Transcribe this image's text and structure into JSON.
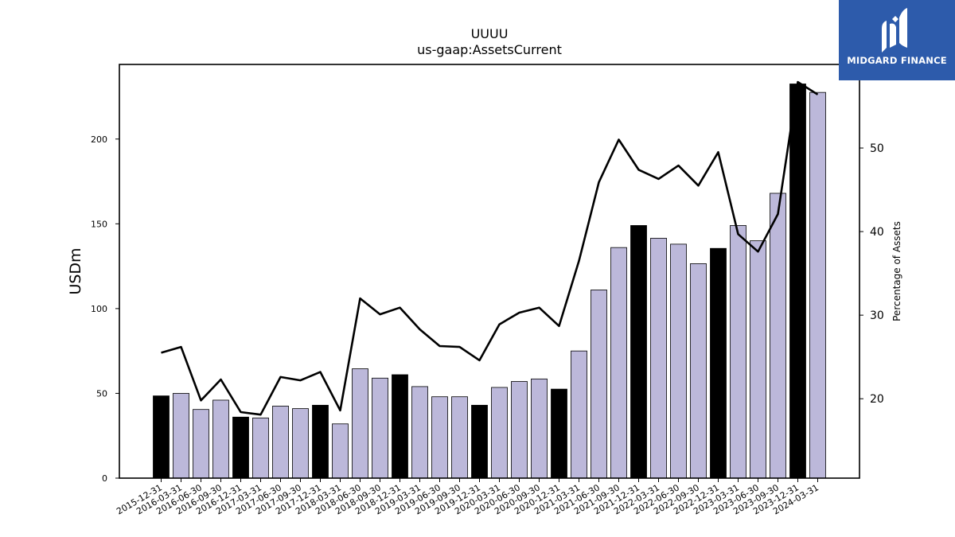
{
  "chart_data": {
    "type": "bar",
    "title": "UUUU",
    "subtitle": "us-gaap:AssetsCurrent",
    "ylabel": "USDm",
    "y2label": "Percentage of Assets",
    "ylim": [
      0,
      244
    ],
    "y2lim": [
      10.5,
      60.0
    ],
    "yticks": [
      0,
      50,
      100,
      150,
      200
    ],
    "y2ticks": [
      20,
      30,
      40,
      50
    ],
    "categories": [
      "2015-12-31",
      "2016-03-31",
      "2016-06-30",
      "2016-09-30",
      "2016-12-31",
      "2017-03-31",
      "2017-06-30",
      "2017-09-30",
      "2017-12-31",
      "2018-03-31",
      "2018-06-30",
      "2018-09-30",
      "2018-12-31",
      "2019-03-31",
      "2019-06-30",
      "2019-09-30",
      "2019-12-31",
      "2020-03-31",
      "2020-06-30",
      "2020-09-30",
      "2020-12-31",
      "2021-03-31",
      "2021-06-30",
      "2021-09-30",
      "2021-12-31",
      "2022-03-31",
      "2022-06-30",
      "2022-09-30",
      "2022-12-31",
      "2023-03-31",
      "2023-06-30",
      "2023-09-30",
      "2023-12-31",
      "2024-03-31"
    ],
    "series": [
      {
        "kind": "bar",
        "values": [
          48.5,
          50.0,
          40.5,
          46.0,
          36.0,
          35.5,
          42.5,
          41.0,
          43.0,
          32.0,
          64.5,
          59.0,
          61.0,
          54.0,
          48.0,
          48.0,
          43.0,
          53.5,
          57.0,
          58.5,
          52.5,
          75.0,
          111.0,
          136.0,
          149.0,
          141.5,
          138.0,
          126.5,
          135.5,
          149.0,
          140.0,
          168.0,
          232.5,
          227.5
        ],
        "year_end_color": "#000000",
        "quarter_color": "#bcb8da"
      },
      {
        "kind": "line",
        "axis": "secondary",
        "color": "#000000",
        "values": [
          25.5,
          26.2,
          19.8,
          22.3,
          18.4,
          18.1,
          22.6,
          22.2,
          23.2,
          18.6,
          32.0,
          30.1,
          30.9,
          28.3,
          26.3,
          26.2,
          24.6,
          28.9,
          30.3,
          30.9,
          28.7,
          36.5,
          45.9,
          51.0,
          47.4,
          46.3,
          47.9,
          45.5,
          49.5,
          39.7,
          37.6,
          42.1,
          57.9,
          56.4
        ]
      }
    ],
    "grid": false,
    "legend": "none"
  },
  "logo": {
    "text": "MIDGARD FINANCE",
    "color": "#2d5bab"
  }
}
